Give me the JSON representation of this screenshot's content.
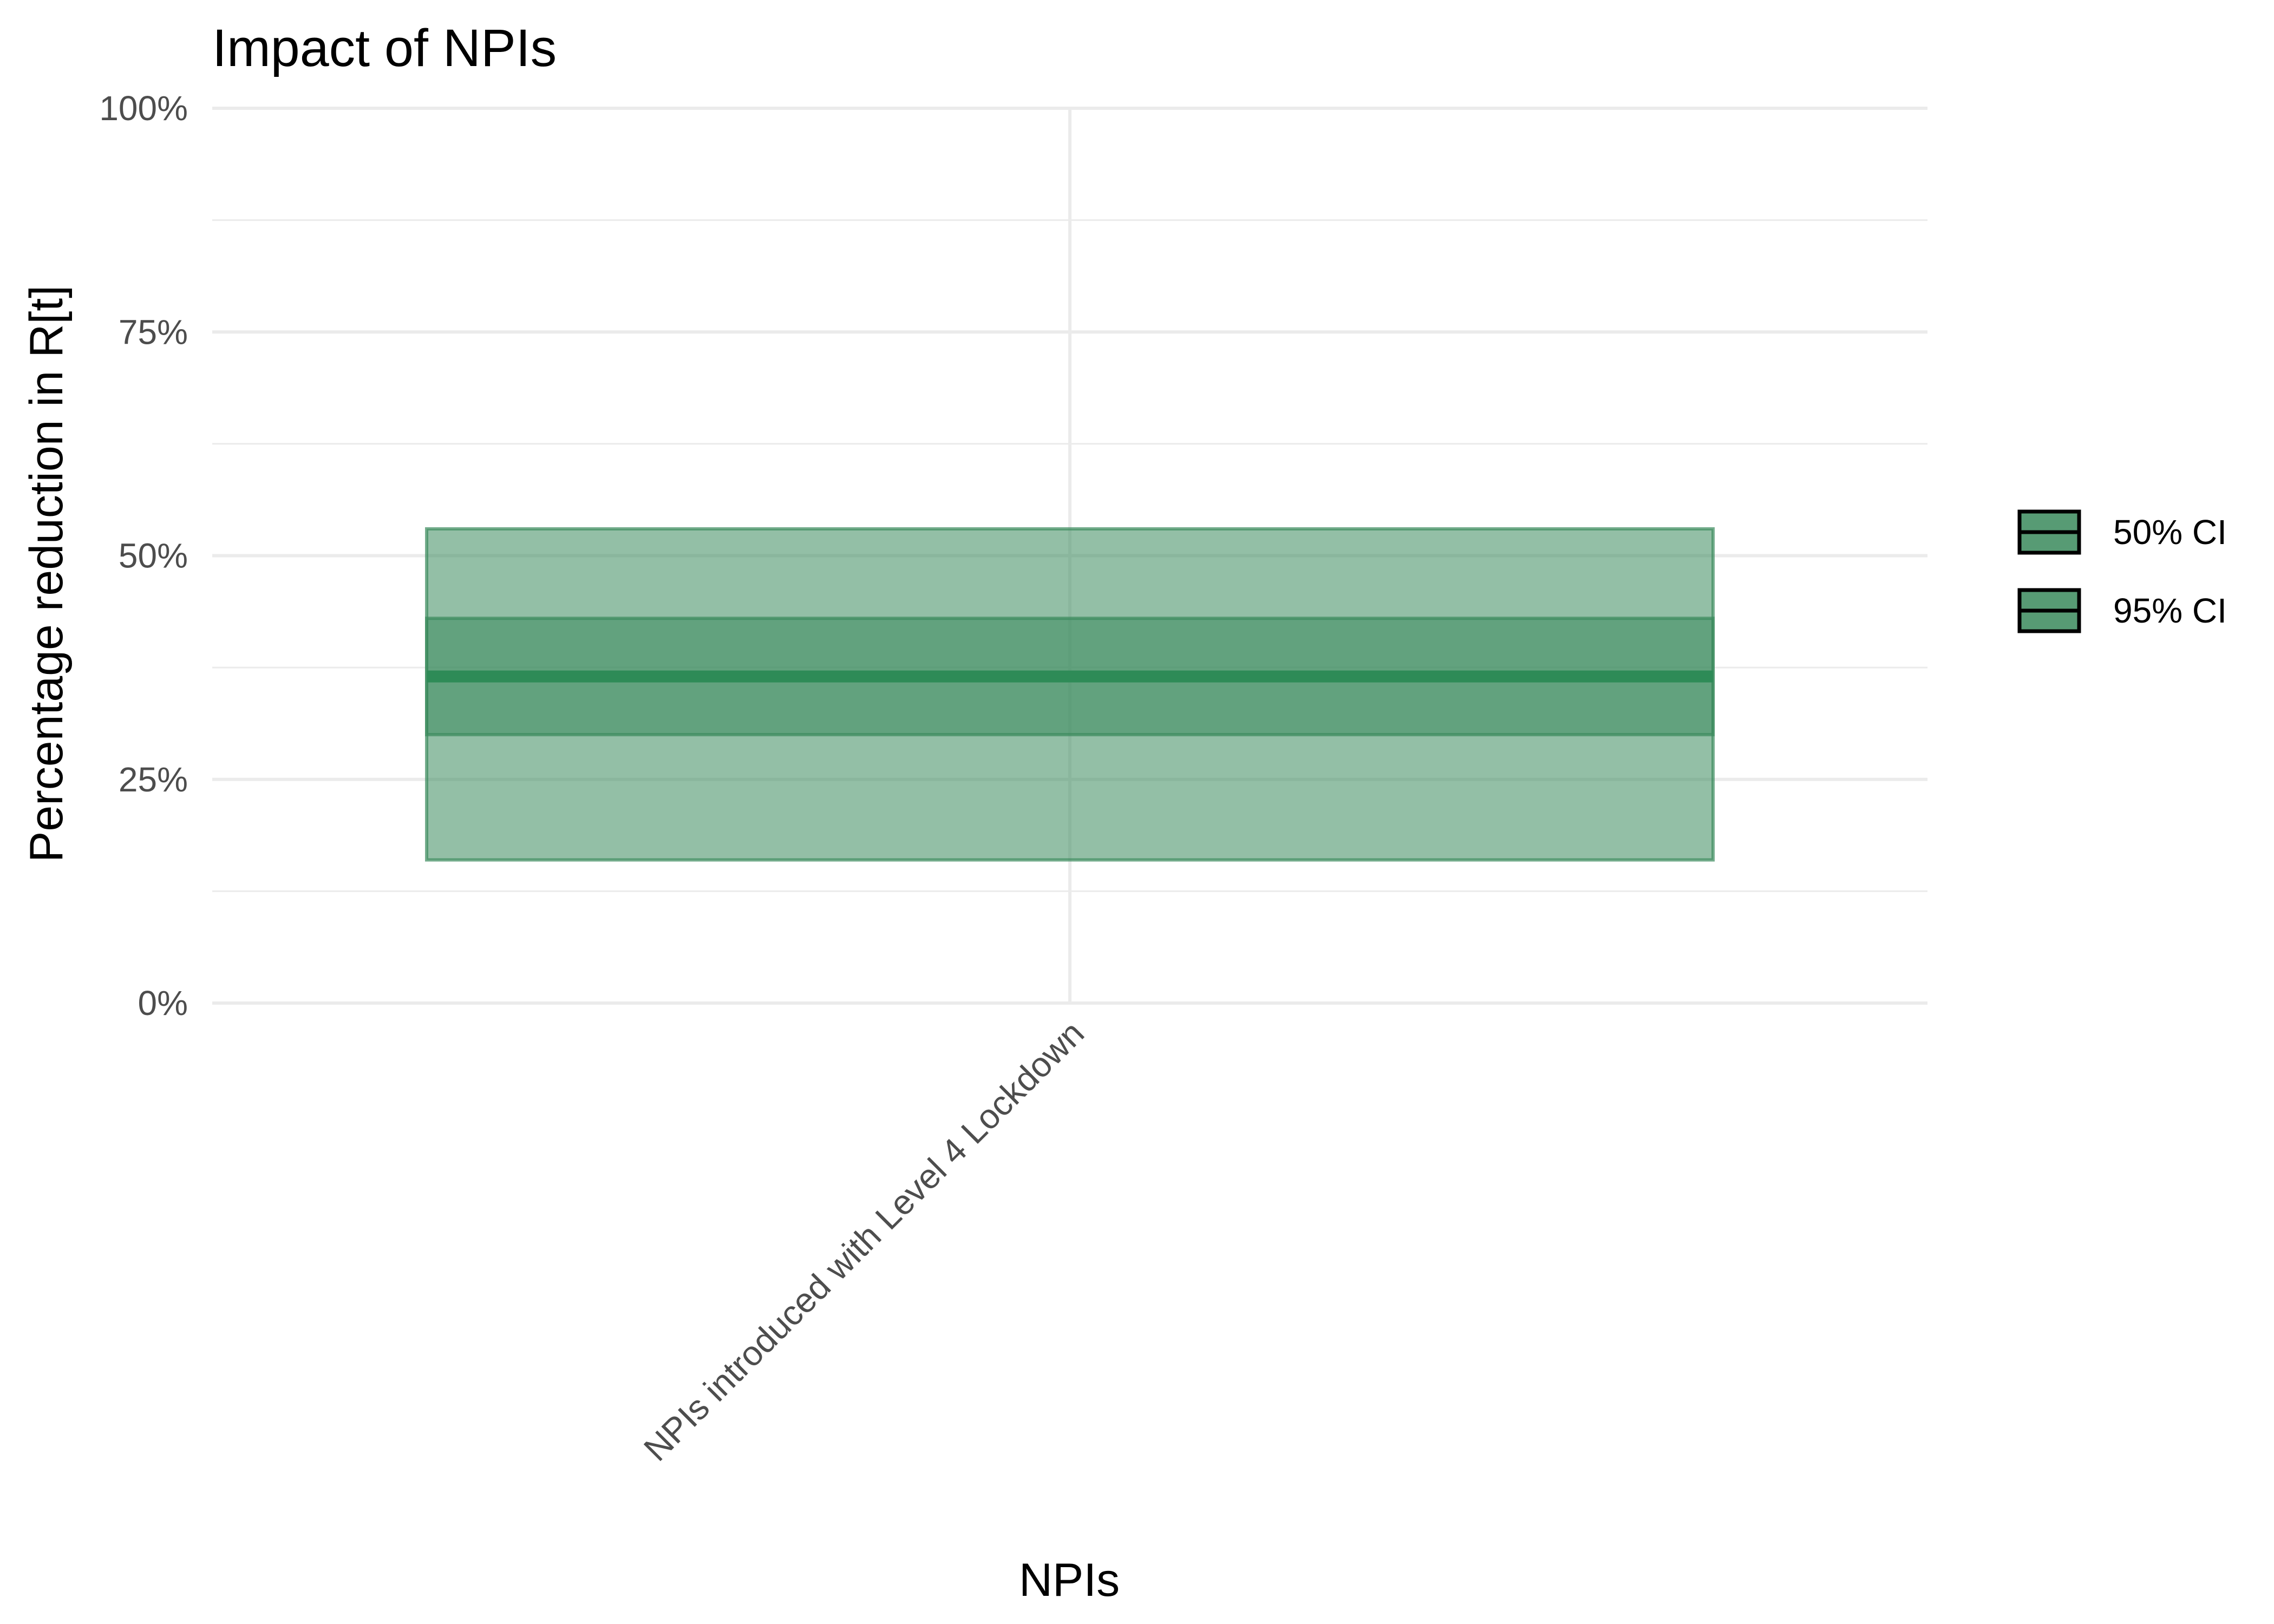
{
  "chart_data": {
    "type": "bar",
    "title": "Impact of NPIs",
    "xlabel": "NPIs",
    "ylabel": "Percentage reduction in R[t]",
    "categories": [
      "NPIs introduced with Level 4 Lockdown"
    ],
    "ylim": [
      0,
      1
    ],
    "yticks": [
      {
        "value": 0,
        "label": "0%"
      },
      {
        "value": 0.25,
        "label": "25%"
      },
      {
        "value": 0.5,
        "label": "50%"
      },
      {
        "value": 0.75,
        "label": "75%"
      },
      {
        "value": 1,
        "label": "100%"
      }
    ],
    "median": [
      0.365
    ],
    "series": [
      {
        "name": "50% CI",
        "lower": [
          0.3
        ],
        "upper": [
          0.43
        ],
        "color": "#3a8a5c"
      },
      {
        "name": "95% CI",
        "lower": [
          0.16
        ],
        "upper": [
          0.53
        ],
        "color": "#3a8a5c"
      }
    ],
    "colors": {
      "fill": "#3a8a5c",
      "median": "#2e8b57",
      "grid": "#ebebeb"
    },
    "grid": true,
    "legend_position": "right"
  }
}
